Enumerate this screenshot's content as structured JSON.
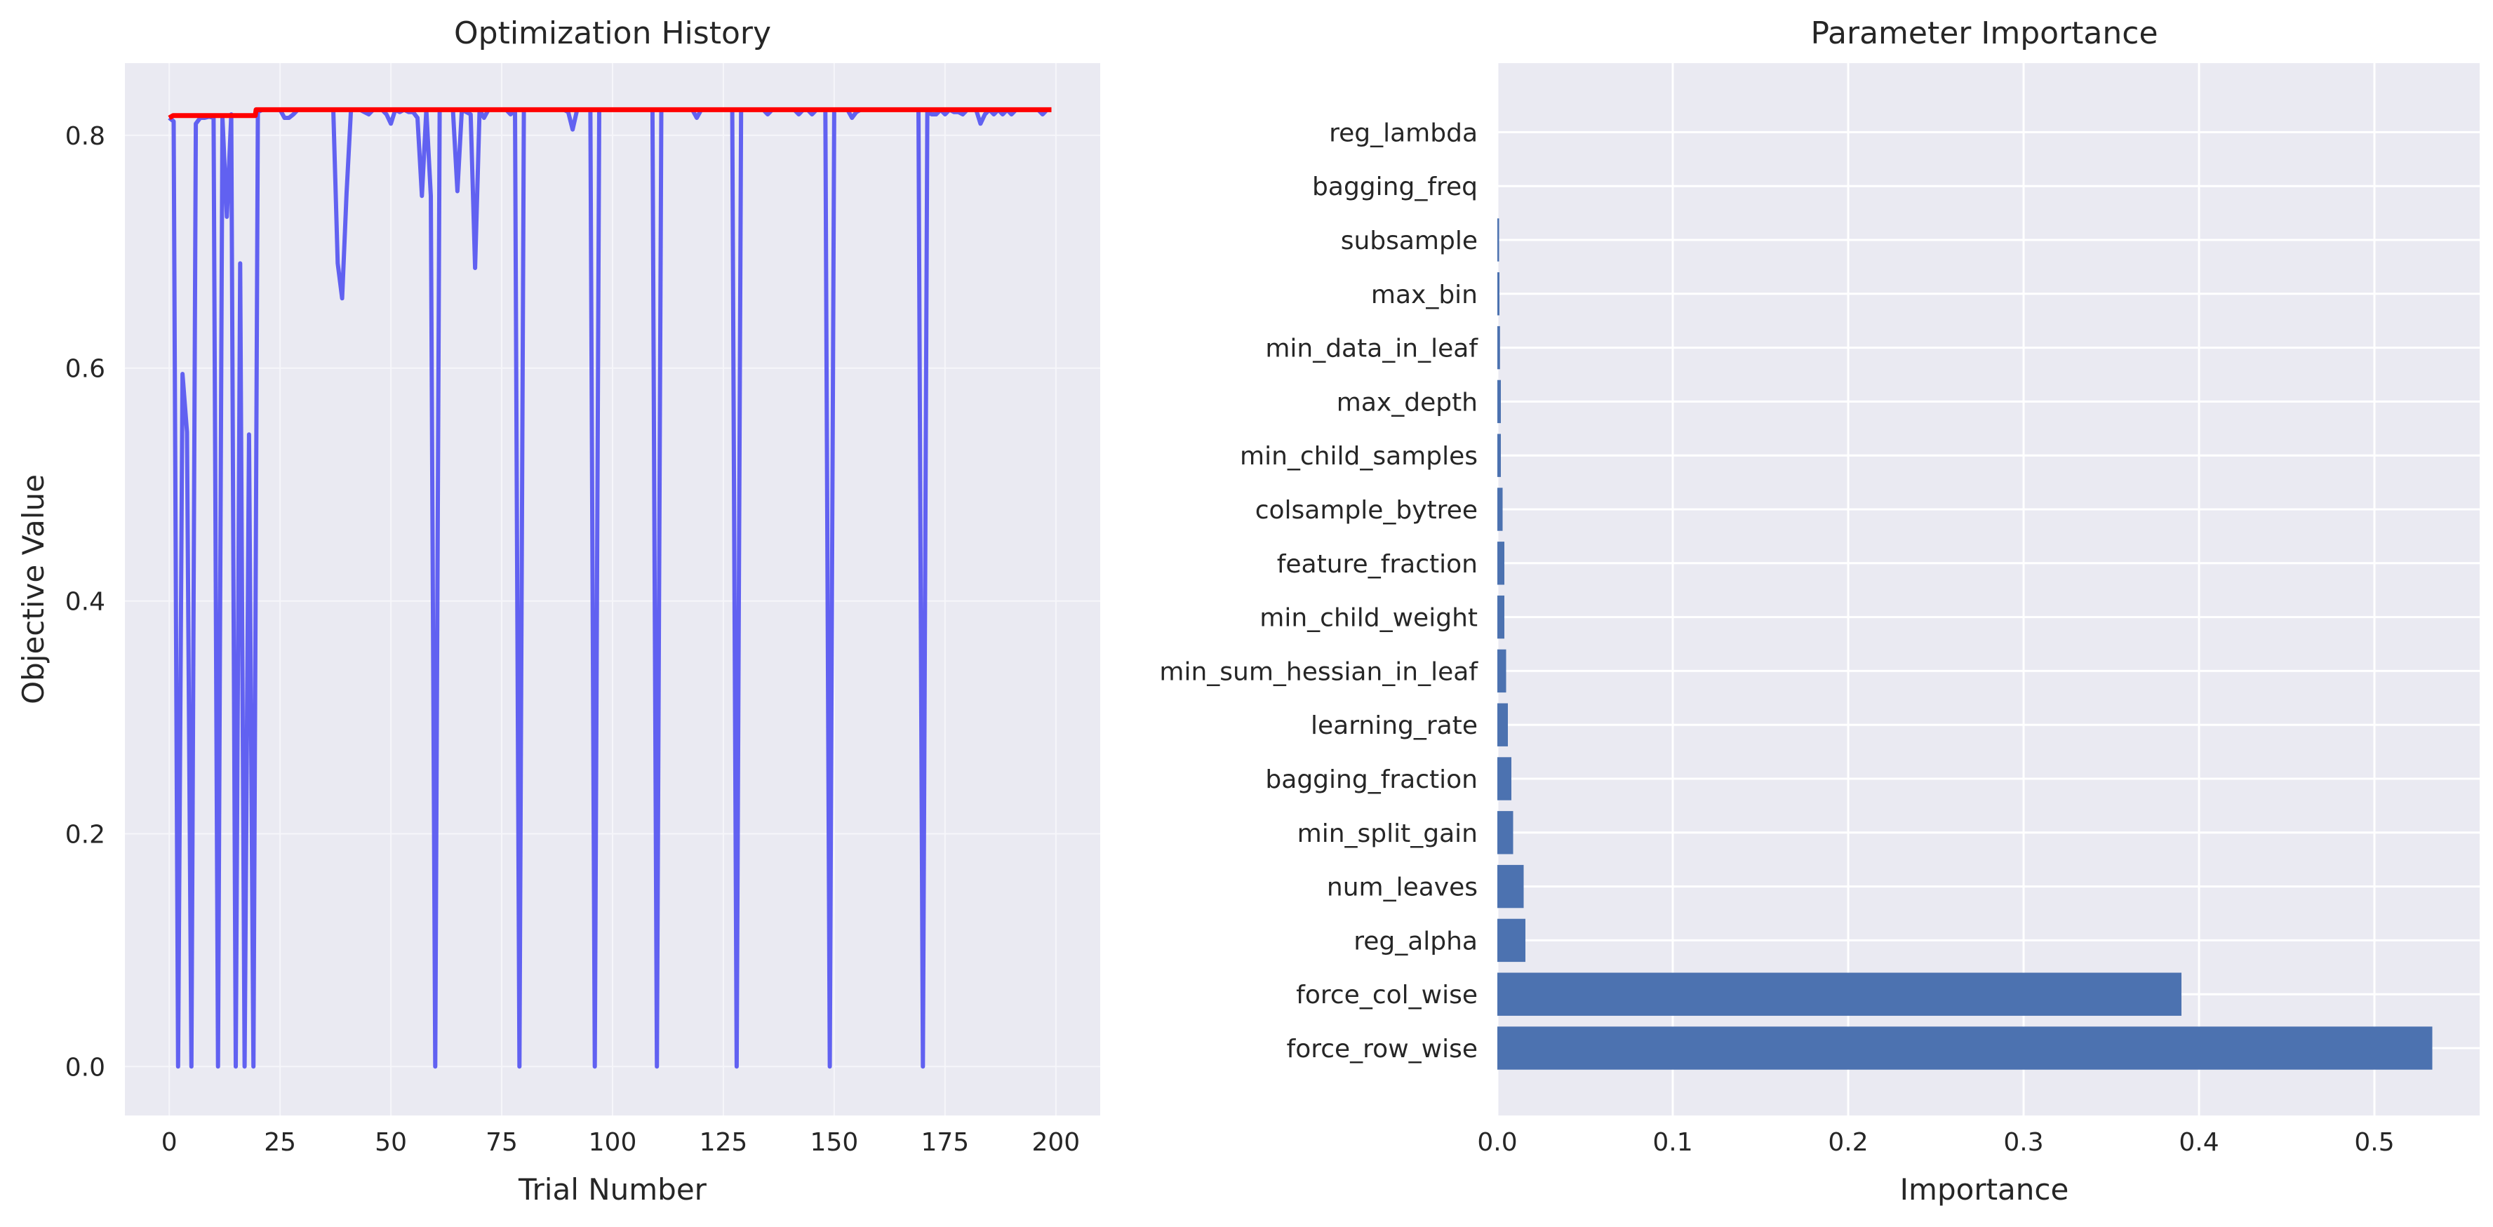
{
  "chart_data": [
    {
      "type": "line",
      "title": "Optimization History",
      "xlabel": "Trial Number",
      "ylabel": "Objective Value",
      "xlim": [
        -10,
        210
      ],
      "ylim": [
        -0.042,
        0.862
      ],
      "xticks": [
        0,
        25,
        50,
        75,
        100,
        125,
        150,
        175,
        200
      ],
      "yticks": [
        0.0,
        0.2,
        0.4,
        0.6,
        0.8
      ],
      "tick_labels_x": [
        "0",
        "25",
        "50",
        "75",
        "100",
        "125",
        "150",
        "175",
        "200"
      ],
      "tick_labels_y": [
        "0.0",
        "0.2",
        "0.4",
        "0.6",
        "0.8"
      ],
      "grid": true,
      "series": [
        {
          "color": "#5a5af0",
          "x": [
            0,
            1,
            2,
            3,
            4,
            5,
            6,
            7,
            8,
            9,
            10,
            11,
            12,
            13,
            14,
            15,
            16,
            17,
            18,
            19,
            20,
            21,
            22,
            23,
            24,
            25,
            26,
            27,
            28,
            29,
            30,
            31,
            32,
            33,
            34,
            35,
            36,
            37,
            38,
            39,
            40,
            41,
            42,
            43,
            44,
            45,
            46,
            47,
            48,
            49,
            50,
            51,
            52,
            53,
            54,
            55,
            56,
            57,
            58,
            59,
            60,
            61,
            62,
            63,
            64,
            65,
            66,
            67,
            68,
            69,
            70,
            71,
            72,
            73,
            74,
            75,
            76,
            77,
            78,
            79,
            80,
            81,
            82,
            83,
            84,
            85,
            86,
            87,
            88,
            89,
            90,
            91,
            92,
            93,
            94,
            95,
            96,
            97,
            98,
            99,
            100,
            101,
            102,
            103,
            104,
            105,
            106,
            107,
            108,
            109,
            110,
            111,
            112,
            113,
            114,
            115,
            116,
            117,
            118,
            119,
            120,
            121,
            122,
            123,
            124,
            125,
            126,
            127,
            128,
            129,
            130,
            131,
            132,
            133,
            134,
            135,
            136,
            137,
            138,
            139,
            140,
            141,
            142,
            143,
            144,
            145,
            146,
            147,
            148,
            149,
            150,
            151,
            152,
            153,
            154,
            155,
            156,
            157,
            158,
            159,
            160,
            161,
            162,
            163,
            164,
            165,
            166,
            167,
            168,
            169,
            170,
            171,
            172,
            173,
            174,
            175,
            176,
            177,
            178,
            179,
            180,
            181,
            182,
            183,
            184,
            185,
            186,
            187,
            188,
            189,
            190,
            191,
            192,
            193,
            194,
            195,
            196,
            197,
            198,
            199
          ],
          "y": [
            0.815,
            0.812,
            0.0,
            0.595,
            0.545,
            0.0,
            0.81,
            0.815,
            0.815,
            0.816,
            0.815,
            0.0,
            0.816,
            0.73,
            0.818,
            0.0,
            0.69,
            0.0,
            0.543,
            0.0,
            0.82,
            0.822,
            0.822,
            0.822,
            0.822,
            0.822,
            0.815,
            0.815,
            0.818,
            0.822,
            0.822,
            0.822,
            0.822,
            0.822,
            0.822,
            0.822,
            0.822,
            0.822,
            0.69,
            0.66,
            0.75,
            0.822,
            0.822,
            0.822,
            0.82,
            0.818,
            0.822,
            0.822,
            0.822,
            0.818,
            0.81,
            0.822,
            0.82,
            0.822,
            0.82,
            0.82,
            0.815,
            0.748,
            0.822,
            0.748,
            0.0,
            0.822,
            0.822,
            0.822,
            0.822,
            0.752,
            0.822,
            0.82,
            0.818,
            0.686,
            0.822,
            0.815,
            0.822,
            0.822,
            0.822,
            0.822,
            0.822,
            0.818,
            0.822,
            0.0,
            0.822,
            0.822,
            0.822,
            0.822,
            0.822,
            0.822,
            0.822,
            0.822,
            0.822,
            0.822,
            0.82,
            0.805,
            0.822,
            0.822,
            0.822,
            0.822,
            0.0,
            0.822,
            0.822,
            0.822,
            0.822,
            0.822,
            0.822,
            0.822,
            0.822,
            0.822,
            0.822,
            0.822,
            0.822,
            0.822,
            0.0,
            0.822,
            0.822,
            0.822,
            0.822,
            0.822,
            0.822,
            0.822,
            0.822,
            0.815,
            0.822,
            0.822,
            0.822,
            0.822,
            0.822,
            0.822,
            0.822,
            0.822,
            0.0,
            0.822,
            0.822,
            0.822,
            0.822,
            0.822,
            0.822,
            0.818,
            0.822,
            0.822,
            0.822,
            0.822,
            0.822,
            0.822,
            0.818,
            0.822,
            0.822,
            0.818,
            0.822,
            0.822,
            0.822,
            0.0,
            0.822,
            0.822,
            0.822,
            0.822,
            0.815,
            0.82,
            0.822,
            0.822,
            0.822,
            0.822,
            0.822,
            0.822,
            0.822,
            0.822,
            0.822,
            0.822,
            0.822,
            0.822,
            0.822,
            0.822,
            0.0,
            0.82,
            0.818,
            0.818,
            0.822,
            0.818,
            0.822,
            0.82,
            0.82,
            0.818,
            0.822,
            0.822,
            0.822,
            0.81,
            0.818,
            0.822,
            0.818,
            0.822,
            0.818,
            0.822,
            0.818,
            0.822,
            0.822,
            0.822,
            0.822,
            0.822,
            0.822,
            0.818,
            0.822,
            0.822
          ]
        },
        {
          "color": "#ff0000",
          "x": [
            0,
            0.9,
            19.4,
            19.6,
            199
          ],
          "y": [
            0.815,
            0.817,
            0.817,
            0.822,
            0.822
          ]
        }
      ]
    },
    {
      "type": "bar",
      "orientation": "horizontal",
      "title": "Parameter Importance",
      "xlabel": "Importance",
      "ylabel": "",
      "xlim": [
        0,
        0.56
      ],
      "xticks": [
        0.0,
        0.1,
        0.2,
        0.3,
        0.4,
        0.5
      ],
      "tick_labels_x": [
        "0.0",
        "0.1",
        "0.2",
        "0.3",
        "0.4",
        "0.5"
      ],
      "grid": true,
      "bar_color": "#4c72b0",
      "categories": [
        "force_row_wise",
        "force_col_wise",
        "reg_alpha",
        "num_leaves",
        "min_split_gain",
        "bagging_fraction",
        "learning_rate",
        "min_sum_hessian_in_leaf",
        "min_child_weight",
        "feature_fraction",
        "colsample_bytree",
        "min_child_samples",
        "max_depth",
        "min_data_in_leaf",
        "max_bin",
        "subsample",
        "bagging_freq",
        "reg_lambda"
      ],
      "values": [
        0.533,
        0.39,
        0.016,
        0.015,
        0.009,
        0.008,
        0.006,
        0.005,
        0.004,
        0.004,
        0.003,
        0.002,
        0.002,
        0.0015,
        0.0012,
        0.001,
        0.0,
        0.0
      ]
    }
  ]
}
